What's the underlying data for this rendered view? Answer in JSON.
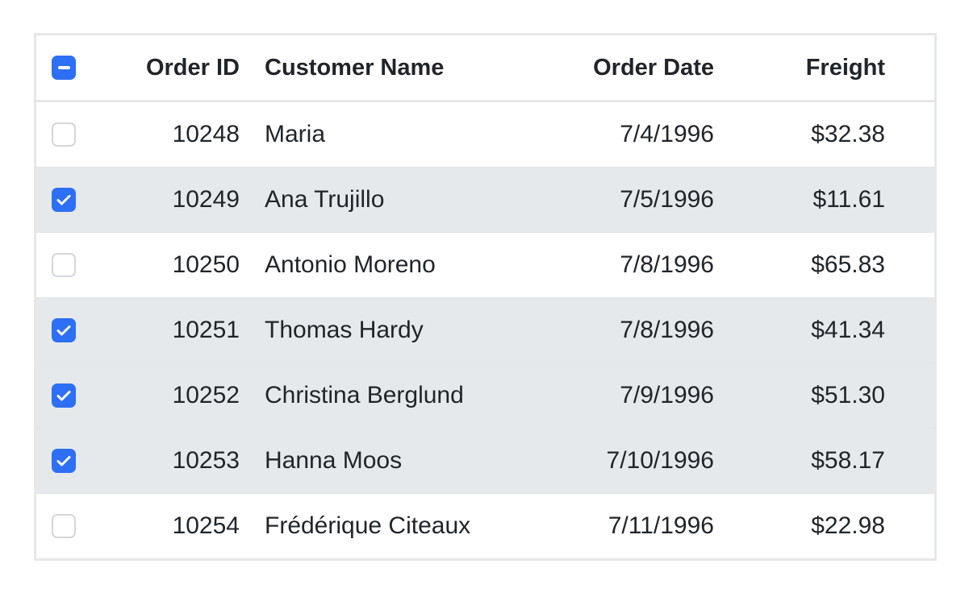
{
  "colors": {
    "accent": "#2d6ff5",
    "selected_row": "#e6e9ec"
  },
  "header": {
    "select_all_state": "indeterminate",
    "columns": [
      "Order ID",
      "Customer Name",
      "Order Date",
      "Freight"
    ]
  },
  "rows": [
    {
      "selected": false,
      "order_id": "10248",
      "customer": "Maria",
      "date": "7/4/1996",
      "freight": "$32.38"
    },
    {
      "selected": true,
      "order_id": "10249",
      "customer": "Ana Trujillo",
      "date": "7/5/1996",
      "freight": "$11.61"
    },
    {
      "selected": false,
      "order_id": "10250",
      "customer": "Antonio Moreno",
      "date": "7/8/1996",
      "freight": "$65.83"
    },
    {
      "selected": true,
      "order_id": "10251",
      "customer": "Thomas Hardy",
      "date": "7/8/1996",
      "freight": "$41.34"
    },
    {
      "selected": true,
      "order_id": "10252",
      "customer": "Christina Berglund",
      "date": "7/9/1996",
      "freight": "$51.30"
    },
    {
      "selected": true,
      "order_id": "10253",
      "customer": "Hanna Moos",
      "date": "7/10/1996",
      "freight": "$58.17"
    },
    {
      "selected": false,
      "order_id": "10254",
      "customer": "Frédérique Citeaux",
      "date": "7/11/1996",
      "freight": "$22.98"
    }
  ]
}
